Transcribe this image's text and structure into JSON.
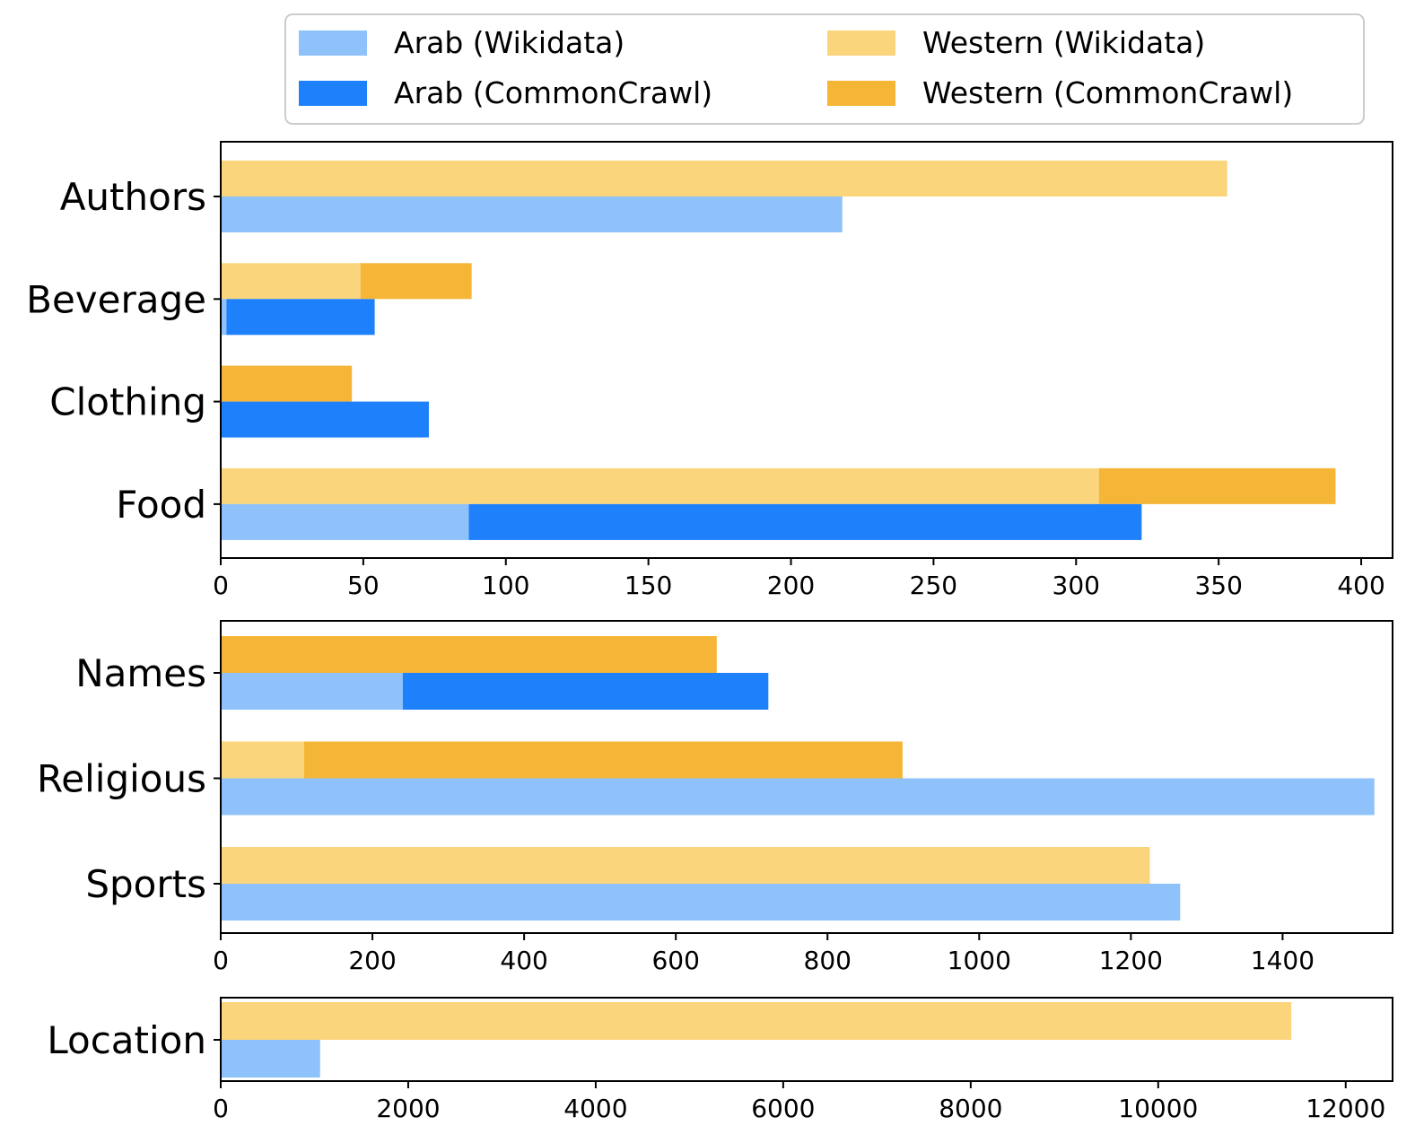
{
  "chart_data": {
    "type": "bar",
    "orientation": "horizontal",
    "legend": {
      "placement": "top",
      "entries": [
        {
          "key": "arab_wiki",
          "label": "Arab (Wikidata)",
          "color": "#8fc1fa"
        },
        {
          "key": "western_wiki",
          "label": "Western (Wikidata)",
          "color": "#fbd57c"
        },
        {
          "key": "arab_cc",
          "label": "Arab (CommonCrawl)",
          "color": "#1f80fc"
        },
        {
          "key": "western_cc",
          "label": "Western (CommonCrawl)",
          "color": "#f5b638"
        }
      ]
    },
    "panels": [
      {
        "categories": [
          "Authors",
          "Beverage",
          "Clothing",
          "Food"
        ],
        "xlim": [
          0,
          411
        ],
        "ticks": [
          0,
          50,
          100,
          150,
          200,
          250,
          300,
          350,
          400
        ],
        "series": {
          "western_wiki": [
            353,
            49,
            0,
            308
          ],
          "western_cc": [
            0,
            39,
            46,
            83
          ],
          "arab_wiki": [
            218,
            2,
            0,
            87
          ],
          "arab_cc": [
            0,
            52,
            73,
            236
          ]
        }
      },
      {
        "categories": [
          "Names",
          "Religious",
          "Sports"
        ],
        "xlim": [
          0,
          1545
        ],
        "ticks": [
          0,
          200,
          400,
          600,
          800,
          1000,
          1200,
          1400
        ],
        "series": {
          "western_wiki": [
            0,
            110,
            1225
          ],
          "western_cc": [
            654,
            789,
            0
          ],
          "arab_wiki": [
            240,
            1521,
            1265
          ],
          "arab_cc": [
            482,
            0,
            0
          ]
        }
      },
      {
        "categories": [
          "Location"
        ],
        "xlim": [
          0,
          12500
        ],
        "ticks": [
          0,
          2000,
          4000,
          6000,
          8000,
          10000,
          12000
        ],
        "series": {
          "western_wiki": [
            11420
          ],
          "western_cc": [
            0
          ],
          "arab_wiki": [
            1060
          ],
          "arab_cc": [
            0
          ]
        }
      }
    ]
  }
}
